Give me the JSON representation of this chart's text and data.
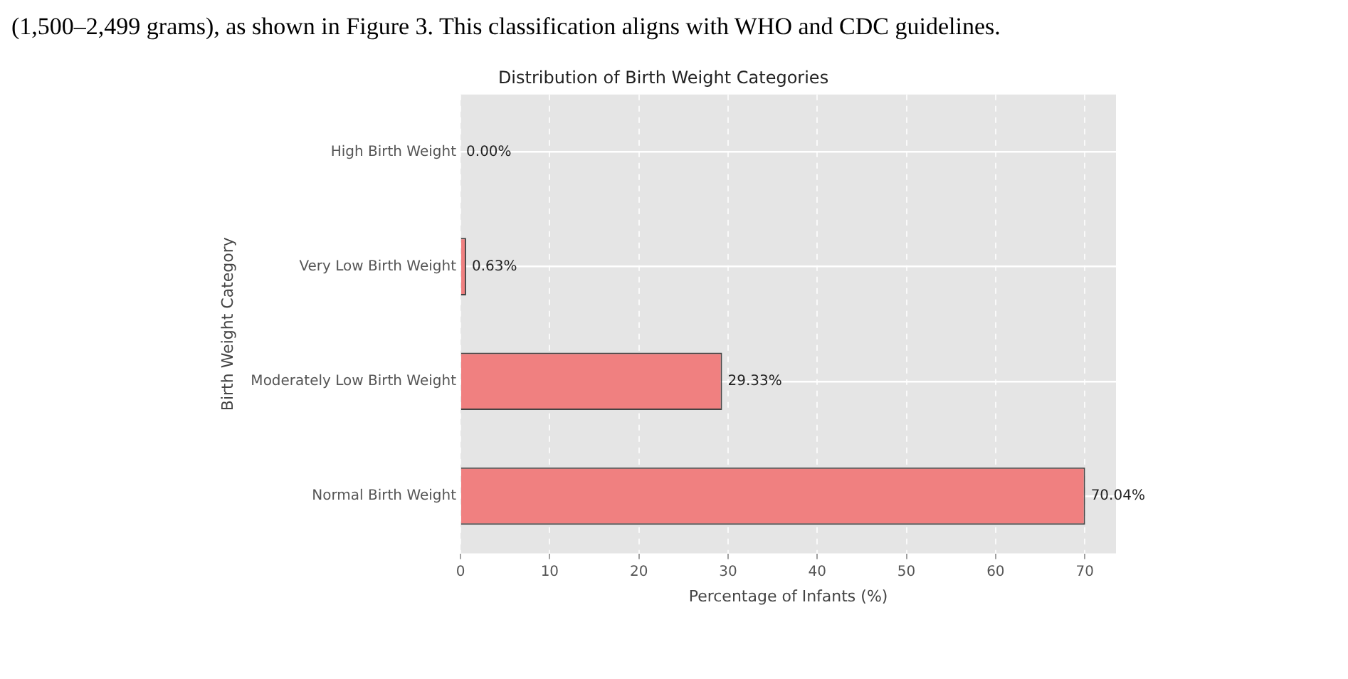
{
  "chart_data": {
    "type": "bar",
    "orientation": "horizontal",
    "title": "Distribution of Birth Weight Categories",
    "xlabel": "Percentage of Infants (%)",
    "ylabel": "Birth Weight Category",
    "categories": [
      "High Birth Weight",
      "Very Low Birth Weight",
      "Moderately Low Birth Weight",
      "Normal Birth Weight"
    ],
    "values": [
      0,
      0.63,
      29.33,
      70.04
    ],
    "color": "#f08080",
    "value_labels": [
      "0.00%",
      "0.63%",
      "29.33%",
      "70.04%"
    ],
    "xlim": [
      0,
      73.5
    ],
    "xticks": [
      0,
      10,
      20,
      30,
      40,
      50,
      60,
      70
    ],
    "grid": true,
    "legend": false,
    "annotations": [
      "(1,500–2,499 grams), as shown in Figure 3. This classification aligns with WHO and CDC guidelines."
    ]
  }
}
